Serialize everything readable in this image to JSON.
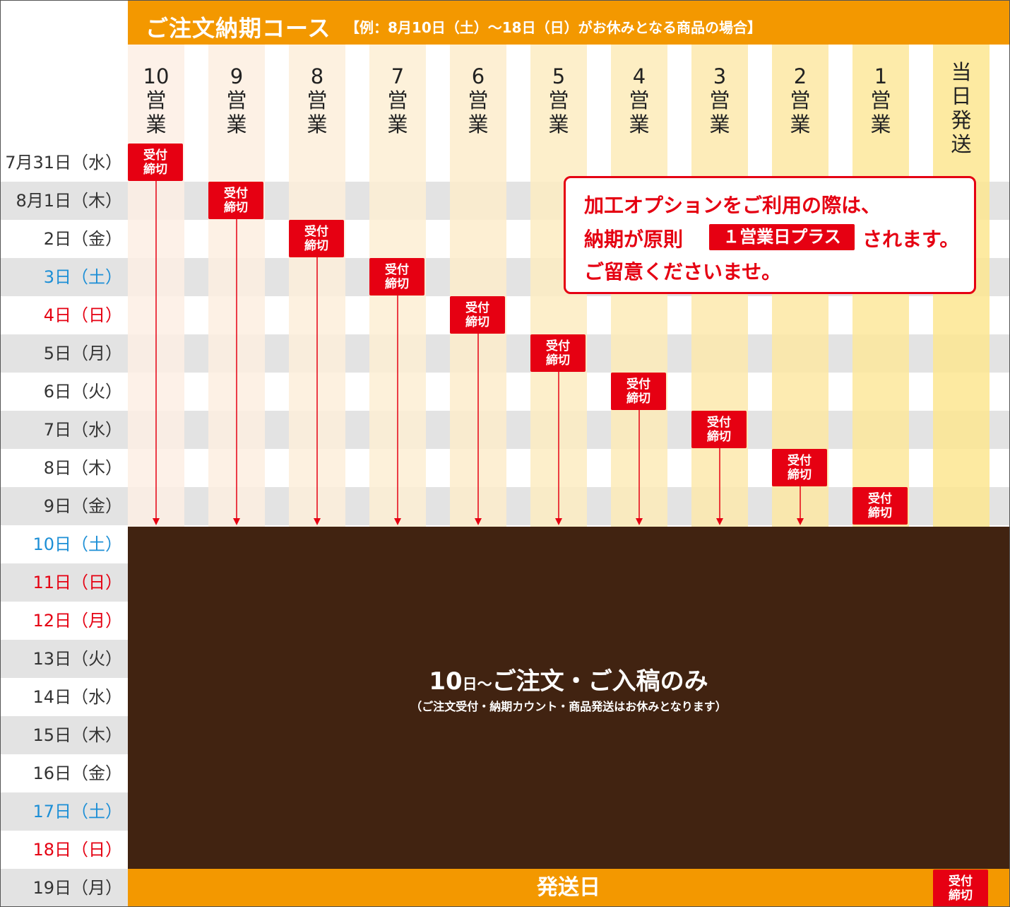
{
  "header": {
    "title": "ご注文納期コース",
    "note": "【例：8月10日（土）〜18日（日）がお休みとなる商品の場合】"
  },
  "colors": {
    "orange": "#f39800",
    "brown": "#412311",
    "red": "#e60012",
    "blue_saturday": "#1d8fd6",
    "red_sunday": "#e50012"
  },
  "dates": [
    {
      "label": "7月31日（水）",
      "kind": "weekday"
    },
    {
      "label": "8月1日（木）",
      "kind": "weekday"
    },
    {
      "label": "2日（金）",
      "kind": "weekday"
    },
    {
      "label": "3日（土）",
      "kind": "sat"
    },
    {
      "label": "4日（日）",
      "kind": "sun"
    },
    {
      "label": "5日（月）",
      "kind": "weekday"
    },
    {
      "label": "6日（火）",
      "kind": "weekday"
    },
    {
      "label": "7日（水）",
      "kind": "weekday"
    },
    {
      "label": "8日（木）",
      "kind": "weekday"
    },
    {
      "label": "9日（金）",
      "kind": "weekday"
    },
    {
      "label": "10日（土）",
      "kind": "sat"
    },
    {
      "label": "11日（日）",
      "kind": "sun"
    },
    {
      "label": "12日（月）",
      "kind": "sun"
    },
    {
      "label": "13日（火）",
      "kind": "weekday"
    },
    {
      "label": "14日（水）",
      "kind": "weekday"
    },
    {
      "label": "15日（木）",
      "kind": "weekday"
    },
    {
      "label": "16日（金）",
      "kind": "weekday"
    },
    {
      "label": "17日（土）",
      "kind": "sat"
    },
    {
      "label": "18日（日）",
      "kind": "sun"
    },
    {
      "label": "19日（月）",
      "kind": "weekday"
    }
  ],
  "columns": [
    {
      "label": [
        "10",
        "営",
        "業"
      ],
      "stripe": "#fdeee4"
    },
    {
      "label": [
        "9",
        "営",
        "業"
      ],
      "stripe": "#fdeee0"
    },
    {
      "label": [
        "8",
        "営",
        "業"
      ],
      "stripe": "#fdefdb"
    },
    {
      "label": [
        "7",
        "営",
        "業"
      ],
      "stripe": "#fdeed4"
    },
    {
      "label": [
        "6",
        "営",
        "業"
      ],
      "stripe": "#fdeccb"
    },
    {
      "label": [
        "5",
        "営",
        "業"
      ],
      "stripe": "#fdecc2"
    },
    {
      "label": [
        "4",
        "営",
        "業"
      ],
      "stripe": "#fdebb8"
    },
    {
      "label": [
        "3",
        "営",
        "業"
      ],
      "stripe": "#fde9ad"
    },
    {
      "label": [
        "2",
        "営",
        "業"
      ],
      "stripe": "#fde8a3"
    },
    {
      "label": [
        "1",
        "営",
        "業"
      ],
      "stripe": "#fde79b"
    },
    {
      "label": [
        "当",
        "日",
        "発",
        "送"
      ],
      "stripe": "#fde690"
    }
  ],
  "deadline_label": [
    "受付",
    "締切"
  ],
  "closed_period": {
    "main_prefix": "10",
    "main_day": "日〜",
    "main_text": "ご注文・ご入稿のみ",
    "sub_text": "（ご注文受付・納期カウント・商品発送はお休みとなります）"
  },
  "footer": {
    "label": "発送日"
  },
  "callout": {
    "line1": "加工オプションをご利用の際は、",
    "line2_before": "納期が原則",
    "badge": "１営業日プラス",
    "line2_after": "されます。",
    "line3": "ご留意くださいませ。"
  }
}
